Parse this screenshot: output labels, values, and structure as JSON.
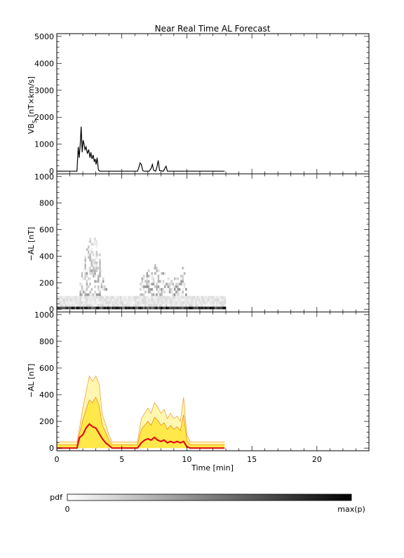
{
  "title": "Near Real Time AL Forecast",
  "chart_data": [
    {
      "type": "line",
      "panel": "vbs",
      "ylabel": "VB",
      "ylabel_sub": "S",
      "ylabel_units": "[nT×km/s]",
      "xlim": [
        0,
        24
      ],
      "ylim": [
        -100,
        5100
      ],
      "yticks": [
        "0",
        "1000",
        "2000",
        "3000",
        "4000",
        "5000"
      ],
      "ytick_values": [
        0,
        1000,
        2000,
        3000,
        4000,
        5000
      ],
      "series": [
        {
          "x": [
            0,
            1.55,
            1.65,
            1.72,
            1.8,
            1.87,
            1.95,
            2.02,
            2.1,
            2.17,
            2.25,
            2.35,
            2.45,
            2.55,
            2.62,
            2.7,
            2.8,
            2.88,
            2.95,
            3.02,
            3.1,
            3.2,
            3.3,
            3.4,
            6.2,
            6.3,
            6.4,
            6.5,
            6.6,
            6.7,
            7.1,
            7.25,
            7.35,
            7.45,
            7.6,
            7.7,
            7.8,
            7.9,
            8.2,
            8.3,
            8.4,
            8.5,
            12.9
          ],
          "y": [
            0,
            0,
            900,
            500,
            1000,
            1650,
            700,
            1150,
            1000,
            800,
            900,
            650,
            800,
            500,
            700,
            450,
            600,
            350,
            450,
            250,
            500,
            50,
            0,
            0,
            0,
            120,
            300,
            250,
            30,
            0,
            0,
            100,
            250,
            30,
            0,
            150,
            400,
            20,
            0,
            100,
            180,
            0,
            0
          ]
        }
      ]
    },
    {
      "type": "heatmap",
      "panel": "al-pdf",
      "ylabel": "−AL [nT]",
      "xlim": [
        0,
        24
      ],
      "ylim": [
        -20,
        1020
      ],
      "yticks": [
        "0",
        "200",
        "400",
        "600",
        "800",
        "1000"
      ],
      "ytick_values": [
        0,
        200,
        400,
        600,
        800,
        1000
      ],
      "data_xrange": [
        0,
        12.9
      ]
    },
    {
      "type": "area",
      "panel": "al-percentiles",
      "ylabel": "−AL [nT]",
      "xlabel": "Time [min]",
      "xlim": [
        0,
        24
      ],
      "ylim": [
        -20,
        1020
      ],
      "xticks": [
        "0",
        "5",
        "10",
        "15",
        "20"
      ],
      "xtick_values": [
        0,
        5,
        10,
        15,
        20
      ],
      "yticks": [
        "0",
        "200",
        "400",
        "600",
        "800",
        "1000"
      ],
      "ytick_values": [
        0,
        200,
        400,
        600,
        800,
        1000
      ],
      "x": [
        0,
        1.55,
        1.75,
        2.0,
        2.25,
        2.5,
        2.75,
        3.0,
        3.25,
        3.5,
        3.75,
        4.0,
        4.25,
        4.5,
        6.2,
        6.5,
        6.75,
        7.0,
        7.25,
        7.5,
        7.75,
        8.0,
        8.25,
        8.5,
        8.75,
        9.0,
        9.25,
        9.5,
        9.75,
        10.0,
        10.25,
        12.9
      ],
      "series": [
        {
          "y": [
            45,
            45,
            150,
            300,
            420,
            540,
            500,
            540,
            480,
            250,
            180,
            100,
            45,
            45,
            45,
            220,
            260,
            300,
            260,
            340,
            310,
            260,
            290,
            220,
            260,
            220,
            240,
            200,
            380,
            100,
            45,
            45
          ]
        },
        {
          "y": [
            25,
            25,
            110,
            210,
            290,
            360,
            340,
            380,
            320,
            170,
            120,
            60,
            25,
            25,
            25,
            140,
            170,
            200,
            170,
            230,
            210,
            170,
            190,
            140,
            170,
            140,
            160,
            130,
            250,
            60,
            25,
            25
          ]
        },
        {
          "y": [
            0,
            0,
            80,
            100,
            150,
            180,
            160,
            150,
            110,
            70,
            40,
            20,
            0,
            0,
            0,
            40,
            60,
            70,
            60,
            80,
            60,
            50,
            60,
            40,
            50,
            40,
            50,
            40,
            50,
            10,
            0,
            0
          ]
        }
      ]
    }
  ],
  "colorbar": {
    "label": "pdf",
    "min_label": "0",
    "max_label": "max(p)"
  }
}
